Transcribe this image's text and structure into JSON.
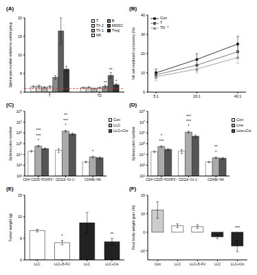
{
  "chart_data": [
    {
      "title": "(A)",
      "type": "bar",
      "y_label": "Splenocytes number relative to control group",
      "categories": [
        "T",
        "TD"
      ],
      "series": [
        {
          "name": "T",
          "color": "#eeeeee",
          "values": [
            1.5,
            1.2
          ],
          "errors": [
            0.2,
            0.2
          ]
        },
        {
          "name": "Th 2",
          "color": "#cfcfcf",
          "values": [
            1.6,
            1.3
          ],
          "errors": [
            0.3,
            0.2
          ]
        },
        {
          "name": "Th 1",
          "color": "#b0b0b0",
          "values": [
            1.3,
            1.0
          ],
          "errors": [
            0.2,
            0.1
          ]
        },
        {
          "name": "NK",
          "color": "#dddddd",
          "values": [
            1.5,
            1.2
          ],
          "errors": [
            0.2,
            0.2
          ]
        },
        {
          "name": "B",
          "color": "#8a8a8a",
          "values": [
            4.0,
            1.6
          ],
          "errors": [
            0.5,
            0.3
          ]
        },
        {
          "name": "MDSC",
          "color": "#5e5e5e",
          "values": [
            16.5,
            4.5
          ],
          "errors": [
            3.5,
            0.8
          ]
        },
        {
          "name": "Treg",
          "color": "#333333",
          "values": [
            6.2,
            2.0
          ],
          "errors": [
            0.8,
            0.3
          ]
        }
      ],
      "ylim": [
        0,
        20
      ],
      "yticks": [
        0,
        5,
        10,
        15,
        20
      ],
      "legend": "upper right",
      "reference_line": {
        "value": 1,
        "color": "#e03030",
        "line_style": "dashed"
      },
      "annotations": [
        {
          "text": "**",
          "category": "TD",
          "series": "B"
        },
        {
          "text": "**",
          "category": "TD",
          "series": "MDSC"
        },
        {
          "text": "*",
          "category": "TD",
          "series": "Treg"
        }
      ]
    },
    {
      "title": "(B)",
      "type": "line",
      "y_label": "NK cell-mediated cytotoxicity (%)",
      "categories": [
        "5:1",
        "20:1",
        "40:1"
      ],
      "series": [
        {
          "name": "Con",
          "color": "#000000",
          "marker": "circle",
          "values": [
            10,
            17,
            25
          ],
          "errors": [
            2,
            3,
            4
          ]
        },
        {
          "name": "T",
          "color": "#555555",
          "marker": "square",
          "values": [
            9,
            14,
            21
          ],
          "errors": [
            2,
            3,
            3
          ]
        },
        {
          "name": "TD",
          "color": "#888888",
          "marker": "triangle",
          "values": [
            8,
            12,
            18
          ],
          "errors": [
            2,
            2,
            3
          ]
        }
      ],
      "ylim": [
        0,
        40
      ],
      "yticks": [
        0,
        10,
        20,
        30,
        40
      ],
      "legend": "upper left",
      "annotations": [
        {
          "text": "*",
          "series": "TD"
        }
      ]
    },
    {
      "title": "(C)",
      "type": "bar",
      "y_label": "Splenocytes number",
      "categories": [
        "CD4⁺CD25⁺FOXP3⁺",
        "CD11b⁺Gr-1⁺",
        "CD49b⁺NK"
      ],
      "series": [
        {
          "name": "Con",
          "color": "#ffffff",
          "values": [
            20000,
            25000,
            2000
          ],
          "errors": [
            3000,
            10000,
            300
          ]
        },
        {
          "name": "LLC",
          "color": "#aaaaaa",
          "values": [
            60000,
            1500000,
            6000
          ],
          "errors": [
            8000,
            300000,
            1000
          ]
        },
        {
          "name": "LLC+Cis",
          "color": "#555555",
          "values": [
            35000,
            800000,
            5000
          ],
          "errors": [
            5000,
            200000,
            1000
          ]
        }
      ],
      "log": "y",
      "ylim": [
        100,
        100000000
      ],
      "yticks": [
        {
          "value": 100,
          "label": "10²"
        },
        {
          "value": 1000,
          "label": "10³"
        },
        {
          "value": 10000,
          "label": "10⁴"
        },
        {
          "value": 100000,
          "label": "10⁵"
        },
        {
          "value": 1000000,
          "label": "10⁶"
        },
        {
          "value": 10000000,
          "label": "10⁷"
        },
        {
          "value": 100000000,
          "label": "10⁸"
        }
      ],
      "legend": "right",
      "annotations": [
        {
          "text": "*",
          "category": "CD4⁺CD25⁺FOXP3⁺"
        },
        {
          "text": "***",
          "category": "CD4⁺CD25⁺FOXP3⁺"
        },
        {
          "text": "***",
          "category": "CD4⁺CD25⁺FOXP3⁺"
        },
        {
          "text": "*",
          "category": "CD11b⁺Gr-1⁺"
        },
        {
          "text": "***",
          "category": "CD11b⁺Gr-1⁺"
        },
        {
          "text": "**",
          "category": "CD11b⁺Gr-1⁺"
        },
        {
          "text": "*",
          "category": "CD49b⁺NK"
        }
      ]
    },
    {
      "title": "(D)",
      "type": "bar",
      "y_label": "Splenocytes number",
      "categories": [
        "CD4⁺CD25⁺FOXP3⁺",
        "CD11b⁺Gr-1⁺",
        "CD49b⁺NK"
      ],
      "series": [
        {
          "name": "Con",
          "color": "#ffffff",
          "values": [
            18000,
            20000,
            2000
          ],
          "errors": [
            3000,
            8000,
            300
          ]
        },
        {
          "name": "Line",
          "color": "#aaaaaa",
          "values": [
            55000,
            1200000,
            5000
          ],
          "errors": [
            8000,
            250000,
            900
          ]
        },
        {
          "name": "Line+Cis",
          "color": "#555555",
          "values": [
            30000,
            500000,
            4500
          ],
          "errors": [
            5000,
            150000,
            900
          ]
        }
      ],
      "log": "y",
      "ylim": [
        100,
        100000000
      ],
      "yticks": [
        {
          "value": 100,
          "label": "10²"
        },
        {
          "value": 1000,
          "label": "10³"
        },
        {
          "value": 10000,
          "label": "10⁴"
        },
        {
          "value": 100000,
          "label": "10⁵"
        },
        {
          "value": 1000000,
          "label": "10⁶"
        },
        {
          "value": 10000000,
          "label": "10⁷"
        },
        {
          "value": 100000000,
          "label": "10⁸"
        }
      ],
      "legend": "right",
      "annotations": [
        {
          "text": "***",
          "category": "CD4⁺CD25⁺FOXP3⁺"
        },
        {
          "text": "*",
          "category": "CD4⁺CD25⁺FOXP3⁺"
        },
        {
          "text": "*",
          "category": "CD11b⁺Gr-1⁺"
        },
        {
          "text": "***",
          "category": "CD11b⁺Gr-1⁺"
        },
        {
          "text": "***",
          "category": "CD11b⁺Gr-1⁺"
        },
        {
          "text": "*",
          "category": "CD49b⁺NK"
        },
        {
          "text": "**",
          "category": "CD49b⁺NK"
        }
      ]
    },
    {
      "title": "(E)",
      "type": "bar",
      "y_label": "Tumor weight (g)",
      "categories": [
        "LLC",
        "LLC+5-FU",
        "LLC",
        "LLC+Cis"
      ],
      "values": [
        6.8,
        4.0,
        8.6,
        4.2
      ],
      "errors": [
        0.3,
        0.5,
        2.4,
        0.8
      ],
      "colors": [
        "#ffffff",
        "#ffffff",
        "#222222",
        "#222222"
      ],
      "ylim": [
        0,
        15
      ],
      "yticks": [
        0,
        5,
        10,
        15
      ],
      "annotations": [
        {
          "text": "*",
          "index": 1
        },
        {
          "text": "**",
          "index": 3
        }
      ]
    },
    {
      "title": "(F)",
      "type": "bar",
      "y_label": "Final body weight gain (%)",
      "categories": [
        "Con",
        "LLC",
        "LLC+5-FU",
        "LLC",
        "LLC+Cis"
      ],
      "values": [
        12,
        3.5,
        3.0,
        -2.5,
        -7.5
      ],
      "errors": [
        4.5,
        1,
        1,
        1,
        3
      ],
      "colors": [
        "#cccccc",
        "#ffffff",
        "#ffffff",
        "#222222",
        "#222222"
      ],
      "ylim": [
        -15,
        20
      ],
      "yticks": [
        -10,
        0,
        10,
        20
      ],
      "annotations": [
        {
          "text": "***",
          "index": 4
        }
      ]
    }
  ]
}
